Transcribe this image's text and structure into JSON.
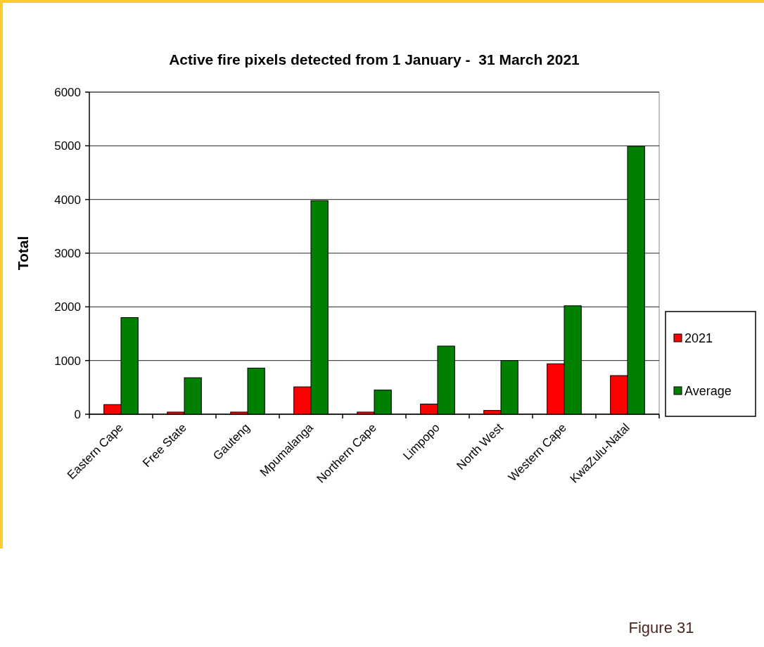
{
  "chart_data": {
    "type": "bar",
    "title": "Active fire pixels detected from 1 January -  31 March 2021",
    "ylabel": "Total",
    "categories": [
      "Eastern Cape",
      "Free State",
      "Gauteng",
      "Mpumalanga",
      "Northern Cape",
      "Limpopo",
      "North West",
      "Western Cape",
      "KwaZulu-Natal"
    ],
    "series": [
      {
        "name": "2021",
        "color": "#ff0000",
        "values": [
          180,
          40,
          40,
          510,
          40,
          190,
          70,
          940,
          720
        ]
      },
      {
        "name": "Average",
        "color": "#008000",
        "values": [
          1800,
          680,
          860,
          3980,
          450,
          1270,
          1000,
          2020,
          4990
        ]
      }
    ],
    "ylim": [
      0,
      6000
    ],
    "yticks": [
      0,
      1000,
      2000,
      3000,
      4000,
      5000,
      6000
    ],
    "grid": "y",
    "legend": "right",
    "annotations": [
      "Figure 31"
    ]
  }
}
